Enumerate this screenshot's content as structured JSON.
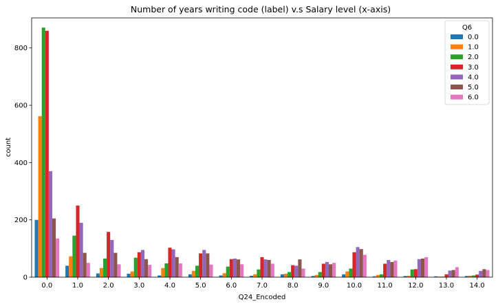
{
  "chart_data": {
    "type": "bar",
    "title": "Number of years writing code (label) v.s Salary level (x-axis)",
    "xlabel": "Q24_Encoded",
    "ylabel": "count",
    "ylim": [
      0,
      905
    ],
    "yticks": [
      0,
      200,
      400,
      600,
      800
    ],
    "grid": false,
    "legend": {
      "title": "Q6",
      "placement": "top-right"
    },
    "categories": [
      "0.0",
      "1.0",
      "2.0",
      "3.0",
      "4.0",
      "5.0",
      "6.0",
      "7.0",
      "8.0",
      "9.0",
      "10.0",
      "11.0",
      "12.0",
      "13.0",
      "14.0"
    ],
    "series": [
      {
        "name": "0.0",
        "color": "#1f77b4",
        "values": [
          200,
          40,
          13,
          12,
          6,
          10,
          6,
          5,
          10,
          4,
          10,
          3,
          4,
          3,
          4
        ]
      },
      {
        "name": "1.0",
        "color": "#ff7f0e",
        "values": [
          562,
          73,
          32,
          20,
          32,
          22,
          14,
          10,
          12,
          8,
          20,
          8,
          5,
          2,
          5
        ]
      },
      {
        "name": "2.0",
        "color": "#2ca02c",
        "values": [
          871,
          145,
          65,
          68,
          48,
          40,
          37,
          27,
          18,
          18,
          30,
          10,
          27,
          2,
          6
        ]
      },
      {
        "name": "3.0",
        "color": "#d62728",
        "values": [
          860,
          250,
          158,
          87,
          103,
          83,
          63,
          70,
          42,
          47,
          87,
          47,
          28,
          10,
          9
        ]
      },
      {
        "name": "4.0",
        "color": "#9467bd",
        "values": [
          370,
          190,
          130,
          95,
          97,
          95,
          65,
          62,
          40,
          53,
          105,
          60,
          63,
          23,
          22
        ]
      },
      {
        "name": "5.0",
        "color": "#8c564b",
        "values": [
          205,
          85,
          85,
          63,
          70,
          83,
          62,
          60,
          62,
          45,
          98,
          53,
          65,
          25,
          28
        ]
      },
      {
        "name": "6.0",
        "color": "#e377c2",
        "values": [
          135,
          50,
          45,
          43,
          48,
          44,
          45,
          47,
          30,
          50,
          78,
          58,
          70,
          35,
          25
        ]
      }
    ]
  }
}
